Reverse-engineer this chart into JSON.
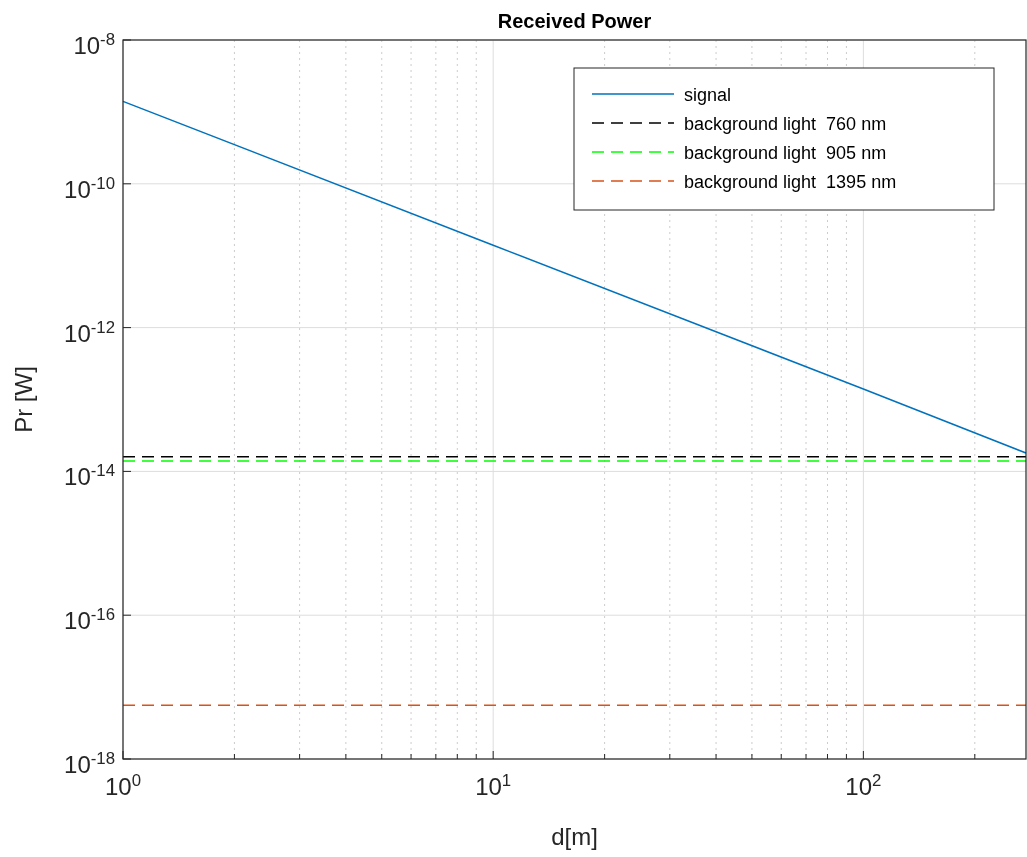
{
  "chart_data": {
    "type": "line",
    "title": "Received Power",
    "xlabel": "d[m]",
    "ylabel": "Pr [W]",
    "log": "xy",
    "xlim": [
      1,
      275
    ],
    "ylim": [
      1e-18,
      1e-08
    ],
    "xticks": [
      {
        "value": 1,
        "label": "10$^{0}$"
      },
      {
        "value": 10,
        "label": "10$^{1}$"
      },
      {
        "value": 100,
        "label": "10$^{2}$"
      }
    ],
    "yticks": [
      {
        "value": 1e-18,
        "label": "10$^{-18}$"
      },
      {
        "value": 1e-16,
        "label": "10$^{-16}$"
      },
      {
        "value": 1e-14,
        "label": "10$^{-14}$"
      },
      {
        "value": 1e-12,
        "label": "10$^{-12}$"
      },
      {
        "value": 1e-10,
        "label": "10$^{-10}$"
      },
      {
        "value": 1e-08,
        "label": "10$^{-8}$"
      }
    ],
    "grid": true,
    "legend": "top right",
    "series": [
      {
        "name": "signal",
        "color": "#0072bd",
        "line_style": "solid",
        "x": [
          1,
          10,
          100,
          275
        ],
        "values": [
          1.4e-09,
          1.4e-11,
          1.4e-13,
          1.8e-14
        ]
      },
      {
        "name": "background light  760 nm",
        "color": "#000000",
        "line_style": "dashed",
        "x": [
          1,
          275
        ],
        "values": [
          1.6e-14,
          1.6e-14
        ]
      },
      {
        "name": "background light  905 nm",
        "color": "#00ff00",
        "line_style": "dashed",
        "x": [
          1,
          275
        ],
        "values": [
          1.4e-14,
          1.4e-14
        ]
      },
      {
        "name": "background light  1395 nm",
        "color": "#d95319",
        "line_style": "dashed",
        "x": [
          1,
          275
        ],
        "values": [
          5.6e-18,
          5.6e-18
        ]
      }
    ]
  }
}
